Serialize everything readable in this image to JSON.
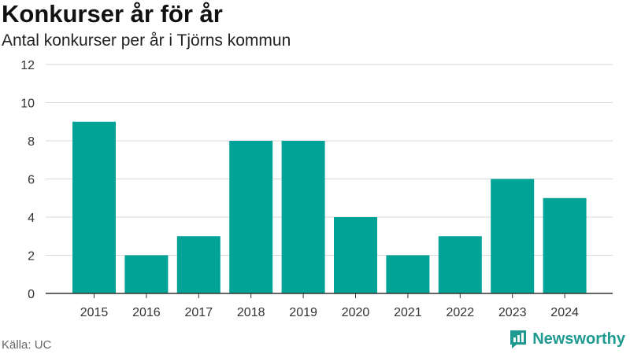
{
  "header": {
    "title": "Konkurser år för år",
    "subtitle": "Antal konkurser per år i Tjörns kommun"
  },
  "footer": {
    "source": "Källa: UC",
    "brand": "Newsworthy"
  },
  "colors": {
    "bar": "#00a396",
    "grid": "#d9d9d9",
    "axis": "#333333",
    "brand": "#1f9a90"
  },
  "chart_data": {
    "type": "bar",
    "categories": [
      "2015",
      "2016",
      "2017",
      "2018",
      "2019",
      "2020",
      "2021",
      "2022",
      "2023",
      "2024"
    ],
    "values": [
      9,
      2,
      3,
      8,
      8,
      4,
      2,
      3,
      6,
      5
    ],
    "title": "Konkurser år för år",
    "subtitle": "Antal konkurser per år i Tjörns kommun",
    "xlabel": "",
    "ylabel": "",
    "ylim": [
      0,
      12
    ],
    "yticks": [
      0,
      2,
      4,
      6,
      8,
      10,
      12
    ],
    "grid": true,
    "legend": "none"
  }
}
